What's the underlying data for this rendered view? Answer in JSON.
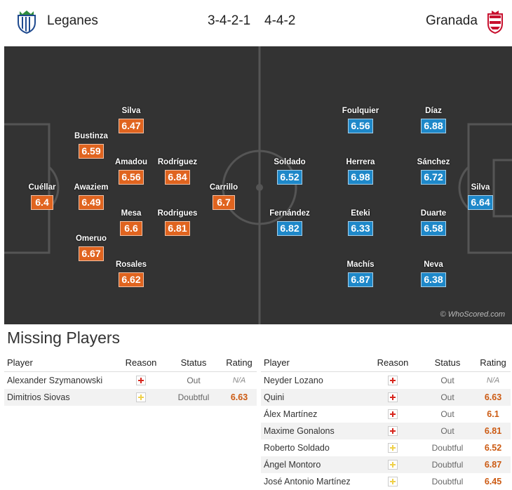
{
  "header": {
    "home_team": "Leganes",
    "home_formation": "3-4-2-1",
    "away_formation": "4-4-2",
    "away_team": "Granada"
  },
  "pitch": {
    "credit": "© WhoScored.com",
    "home_players": [
      {
        "name": "Cuéllar",
        "rating": "6.4"
      },
      {
        "name": "Bustinza",
        "rating": "6.59"
      },
      {
        "name": "Awaziem",
        "rating": "6.49"
      },
      {
        "name": "Omeruo",
        "rating": "6.67"
      },
      {
        "name": "Silva",
        "rating": "6.47"
      },
      {
        "name": "Amadou",
        "rating": "6.56"
      },
      {
        "name": "Mesa",
        "rating": "6.6"
      },
      {
        "name": "Rosales",
        "rating": "6.62"
      },
      {
        "name": "Rodríguez",
        "rating": "6.84"
      },
      {
        "name": "Rodrigues",
        "rating": "6.81"
      },
      {
        "name": "Carrillo",
        "rating": "6.7"
      }
    ],
    "away_players": [
      {
        "name": "Soldado",
        "rating": "6.52"
      },
      {
        "name": "Fernández",
        "rating": "6.82"
      },
      {
        "name": "Foulquier",
        "rating": "6.56"
      },
      {
        "name": "Herrera",
        "rating": "6.98"
      },
      {
        "name": "Eteki",
        "rating": "6.33"
      },
      {
        "name": "Machís",
        "rating": "6.87"
      },
      {
        "name": "Díaz",
        "rating": "6.88"
      },
      {
        "name": "Sánchez",
        "rating": "6.72"
      },
      {
        "name": "Duarte",
        "rating": "6.58"
      },
      {
        "name": "Neva",
        "rating": "6.38"
      },
      {
        "name": "Silva",
        "rating": "6.64"
      }
    ]
  },
  "missing": {
    "title": "Missing Players",
    "columns": {
      "player": "Player",
      "reason": "Reason",
      "status": "Status",
      "rating": "Rating"
    },
    "home": [
      {
        "player": "Alexander Szymanowski",
        "reason": "injury-icon",
        "status": "Out",
        "rating": "N/A"
      },
      {
        "player": "Dimitrios Siovas",
        "reason": "doubt-icon",
        "status": "Doubtful",
        "rating": "6.63"
      }
    ],
    "away": [
      {
        "player": "Neyder Lozano",
        "reason": "injury-icon",
        "status": "Out",
        "rating": "N/A"
      },
      {
        "player": "Quini",
        "reason": "injury-icon",
        "status": "Out",
        "rating": "6.63"
      },
      {
        "player": "Álex Martínez",
        "reason": "injury-icon",
        "status": "Out",
        "rating": "6.1"
      },
      {
        "player": "Maxime Gonalons",
        "reason": "injury-icon",
        "status": "Out",
        "rating": "6.81"
      },
      {
        "player": "Roberto Soldado",
        "reason": "doubt-icon",
        "status": "Doubtful",
        "rating": "6.52"
      },
      {
        "player": "Ángel Montoro",
        "reason": "doubt-icon",
        "status": "Doubtful",
        "rating": "6.87"
      },
      {
        "player": "José Antonio Martínez",
        "reason": "doubt-icon",
        "status": "Doubtful",
        "rating": "6.45"
      }
    ]
  },
  "colors": {
    "home_rating": "#e0641f",
    "away_rating": "#1e88c9",
    "pitch": "#333333",
    "missing_rating": "#cc5a12"
  }
}
